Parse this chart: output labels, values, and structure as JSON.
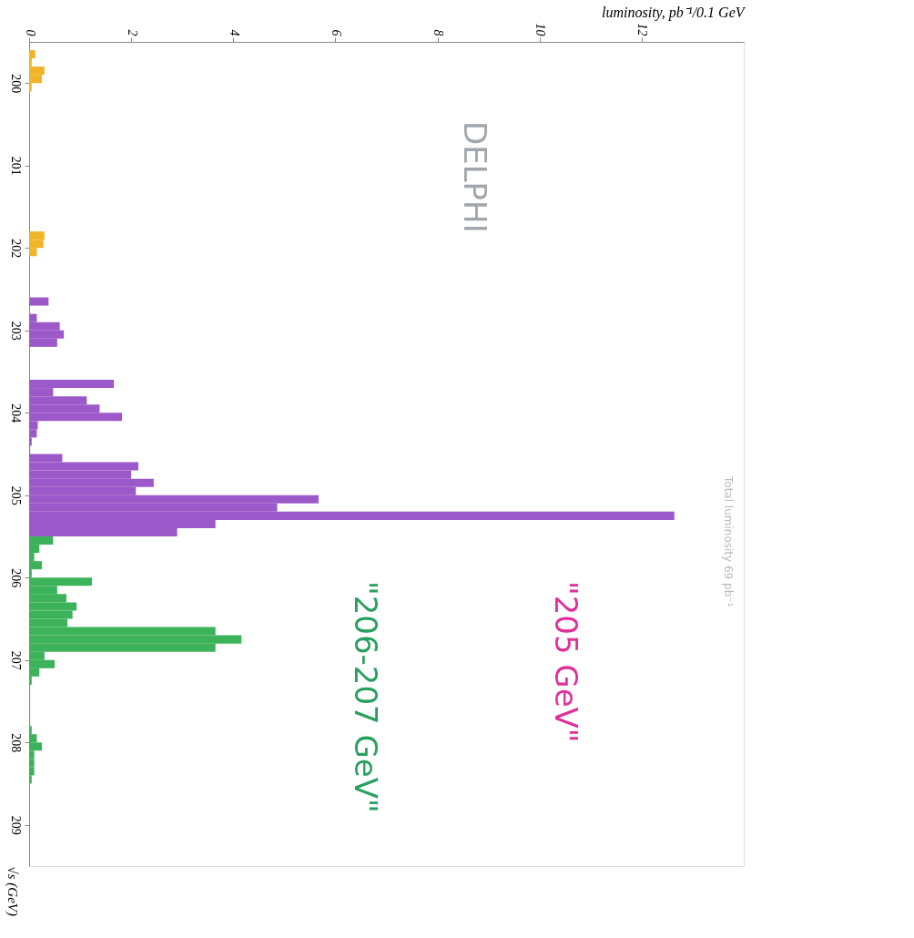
{
  "chart_data": {
    "type": "histogram",
    "orientation": "horizontal",
    "xlabel": "luminosity, pb⁻¹/0.1 GeV",
    "ylabel": "√s (GeV)",
    "xlim": [
      0,
      14
    ],
    "xticks": [
      0,
      2,
      4,
      6,
      8,
      10,
      12
    ],
    "ylim": [
      209.5,
      199.5
    ],
    "yticks": [
      200,
      201,
      202,
      203,
      204,
      205,
      206,
      207,
      208,
      209
    ],
    "grid": false,
    "legend": false,
    "annotations": [
      "DELPHI",
      "\"205 GeV\"",
      "\"206-207 GeV\"",
      "Total luminosity 69 pb⁻¹"
    ],
    "bins": [
      199.6,
      199.7,
      199.8,
      199.9,
      200.0,
      200.1,
      200.2,
      200.3,
      200.4,
      200.5,
      200.6,
      200.7,
      200.8,
      200.9,
      201.0,
      201.1,
      201.2,
      201.3,
      201.4,
      201.5,
      201.6,
      201.7,
      201.8,
      201.9,
      202.0,
      202.1,
      202.2,
      202.3,
      202.4,
      202.5,
      202.6,
      202.7,
      202.8,
      202.9,
      203.0,
      203.1,
      203.2,
      203.3,
      203.4,
      203.5,
      203.6,
      203.7,
      203.8,
      203.9,
      204.0,
      204.1,
      204.2,
      204.3,
      204.4,
      204.5,
      204.6,
      204.7,
      204.8,
      204.9,
      205.0,
      205.1,
      205.2,
      205.3,
      205.4,
      205.5,
      205.6,
      205.7,
      205.8,
      205.9,
      206.0,
      206.1,
      206.2,
      206.3,
      206.4,
      206.5,
      206.6,
      206.7,
      206.8,
      206.9,
      207.0,
      207.1,
      207.2,
      207.3,
      207.4,
      207.5,
      207.6,
      207.7,
      207.8,
      207.9,
      208.0,
      208.1,
      208.2,
      208.3,
      208.4,
      208.5
    ],
    "values": [
      0.12,
      0.05,
      0.3,
      0.25,
      0.05,
      0,
      0,
      0,
      0,
      0,
      0,
      0,
      0,
      0,
      0,
      0,
      0,
      0,
      0,
      0,
      0,
      0,
      0.3,
      0.28,
      0.15,
      0,
      0,
      0,
      0,
      0,
      0.38,
      0,
      0.15,
      0.6,
      0.68,
      0.55,
      0,
      0,
      0,
      0,
      1.66,
      0.47,
      1.13,
      1.38,
      1.82,
      0.17,
      0.15,
      0.05,
      0.02,
      0.65,
      2.14,
      2.0,
      2.44,
      2.09,
      5.67,
      4.86,
      12.64,
      3.65,
      2.9,
      0.47,
      0.2,
      0.1,
      0.25,
      0.05,
      1.23,
      0.55,
      0.73,
      0.93,
      0.85,
      0.75,
      3.65,
      4.16,
      3.65,
      0.3,
      0.5,
      0.2,
      0.05,
      0.02,
      0.02,
      0.02,
      0.02,
      0.02,
      0.05,
      0.15,
      0.25,
      0.1,
      0.1,
      0.1,
      0.05
    ],
    "colors": [
      "#f0b429",
      "#f0b429",
      "#f0b429",
      "#f0b429",
      "#f0b429",
      "#f0b429",
      "#f0b429",
      "#f0b429",
      "#f0b429",
      "#f0b429",
      "#f0b429",
      "#f0b429",
      "#f0b429",
      "#f0b429",
      "#f0b429",
      "#f0b429",
      "#f0b429",
      "#f0b429",
      "#f0b429",
      "#f0b429",
      "#f0b429",
      "#f0b429",
      "#f0b429",
      "#f0b429",
      "#f0b429",
      "#f0b429",
      "#f0b429",
      "#f0b429",
      "#f0b429",
      "#f0b429",
      "#9b59c9",
      "#9b59c9",
      "#9b59c9",
      "#9b59c9",
      "#9b59c9",
      "#9b59c9",
      "#9b59c9",
      "#9b59c9",
      "#9b59c9",
      "#9b59c9",
      "#9b59c9",
      "#9b59c9",
      "#9b59c9",
      "#9b59c9",
      "#9b59c9",
      "#9b59c9",
      "#9b59c9",
      "#9b59c9",
      "#9b59c9",
      "#9b59c9",
      "#9b59c9",
      "#9b59c9",
      "#9b59c9",
      "#9b59c9",
      "#9b59c9",
      "#9b59c9",
      "#9b59c9",
      "#9b59c9",
      "#9b59c9",
      "#3cb35a",
      "#3cb35a",
      "#3cb35a",
      "#3cb35a",
      "#3cb35a",
      "#3cb35a",
      "#3cb35a",
      "#3cb35a",
      "#3cb35a",
      "#3cb35a",
      "#3cb35a",
      "#3cb35a",
      "#3cb35a",
      "#3cb35a",
      "#3cb35a",
      "#3cb35a",
      "#3cb35a",
      "#3cb35a",
      "#3cb35a",
      "#3cb35a",
      "#3cb35a",
      "#3cb35a",
      "#3cb35a",
      "#3cb35a",
      "#3cb35a",
      "#3cb35a",
      "#3cb35a",
      "#3cb35a",
      "#3cb35a",
      "#3cb35a"
    ]
  }
}
